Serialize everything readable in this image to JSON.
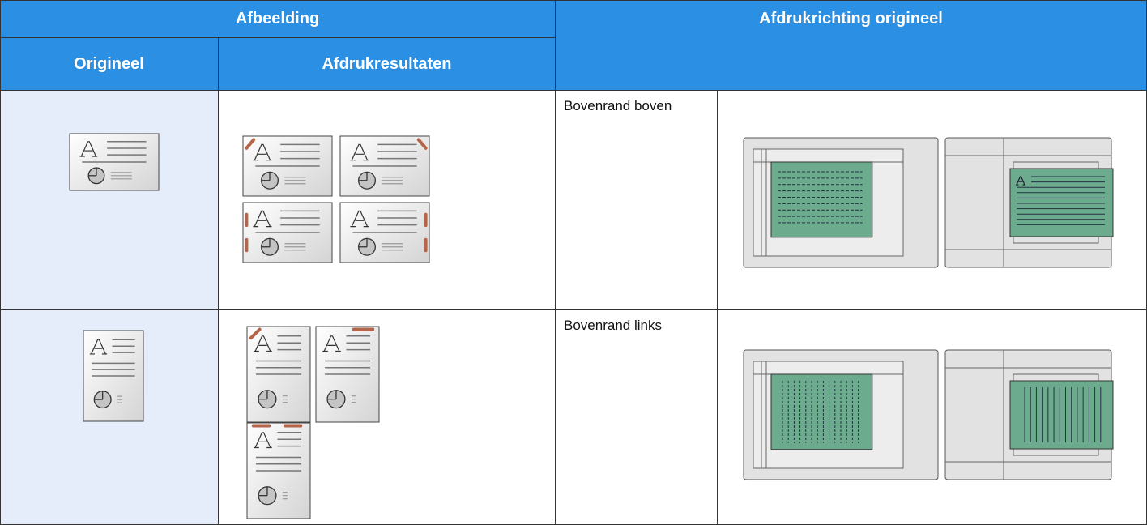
{
  "header": {
    "group_left": "Afbeelding",
    "group_right": "Afdrukrichting origineel",
    "columns": [
      "Origineel",
      "Afdrukresultaten"
    ]
  },
  "rows": [
    {
      "orientation": "Bovenrand boven"
    },
    {
      "orientation": "Bovenrand links"
    }
  ]
}
